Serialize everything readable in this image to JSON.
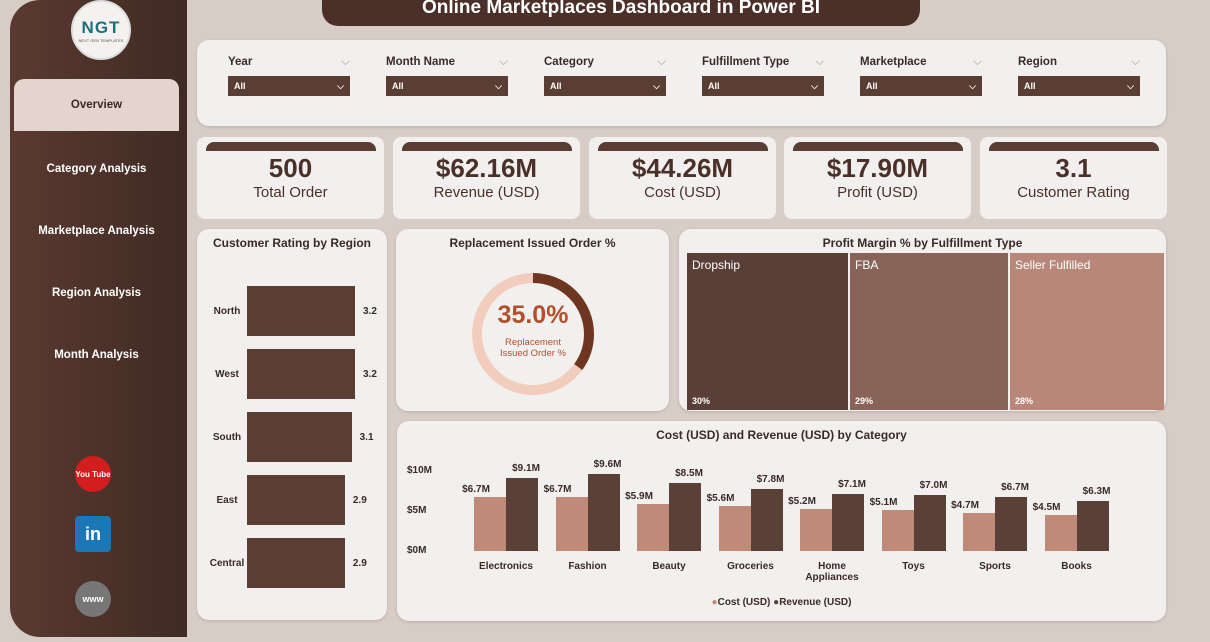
{
  "title": "Online Marketplaces Dashboard in Power BI",
  "logo": {
    "text": "NGT",
    "sub": "NEXT GEN TEMPLATES"
  },
  "nav": [
    {
      "label": "Overview",
      "active": true
    },
    {
      "label": "Category Analysis"
    },
    {
      "label": "Marketplace Analysis"
    },
    {
      "label": "Region Analysis"
    },
    {
      "label": "Month Analysis"
    }
  ],
  "social": {
    "youtube": "You Tube",
    "linkedin": "in",
    "web": "www"
  },
  "filters": [
    {
      "label": "Year",
      "value": "All"
    },
    {
      "label": "Month Name",
      "value": "All"
    },
    {
      "label": "Category",
      "value": "All"
    },
    {
      "label": "Fulfillment Type",
      "value": "All"
    },
    {
      "label": "Marketplace",
      "value": "All"
    },
    {
      "label": "Region",
      "value": "All"
    }
  ],
  "kpis": [
    {
      "value": "500",
      "label": "Total Order"
    },
    {
      "value": "$62.16M",
      "label": "Revenue (USD)"
    },
    {
      "value": "$44.26M",
      "label": "Cost (USD)"
    },
    {
      "value": "$17.90M",
      "label": "Profit (USD)"
    },
    {
      "value": "3.1",
      "label": "Customer Rating"
    }
  ],
  "chart_data": [
    {
      "type": "bar",
      "title": "Customer Rating by Region",
      "orientation": "horizontal",
      "categories": [
        "North",
        "West",
        "South",
        "East",
        "Central"
      ],
      "values": [
        3.2,
        3.2,
        3.1,
        2.9,
        2.9
      ],
      "labels": [
        "3.2",
        "3.2",
        "3.1",
        "2.9",
        "2.9"
      ]
    },
    {
      "type": "pie",
      "title": "Replacement Issued Order %",
      "value": 35.0,
      "value_label": "35.0%",
      "center_label": "Replacement Issued Order %"
    },
    {
      "type": "heatmap",
      "title": "Profit Margin % by Fulfillment Type",
      "categories": [
        "Dropship",
        "FBA",
        "Seller Fulfilled"
      ],
      "values": [
        30,
        29,
        28
      ],
      "labels": [
        "30%",
        "29%",
        "28%"
      ]
    },
    {
      "type": "bar",
      "title": "Cost (USD) and Revenue (USD) by Category",
      "categories": [
        "Electronics",
        "Fashion",
        "Beauty",
        "Groceries",
        "Home Appliances",
        "Toys",
        "Sports",
        "Books"
      ],
      "series": [
        {
          "name": "Cost (USD)",
          "color": "#c08a78",
          "values": [
            6.7,
            6.7,
            5.9,
            5.6,
            5.2,
            5.1,
            4.7,
            4.5
          ],
          "labels": [
            "$6.7M",
            "$6.7M",
            "$5.9M",
            "$5.6M",
            "$5.2M",
            "$5.1M",
            "$4.7M",
            "$4.5M"
          ]
        },
        {
          "name": "Revenue (USD)",
          "color": "#5b4037",
          "values": [
            9.1,
            9.6,
            8.5,
            7.8,
            7.1,
            7.0,
            6.7,
            6.3
          ],
          "labels": [
            "$9.1M",
            "$9.6M",
            "$8.5M",
            "$7.8M",
            "$7.1M",
            "$7.0M",
            "$6.7M",
            "$6.3M"
          ]
        }
      ],
      "yticks": [
        "$0M",
        "$5M",
        "$10M"
      ],
      "ylim": [
        0,
        10
      ]
    }
  ]
}
